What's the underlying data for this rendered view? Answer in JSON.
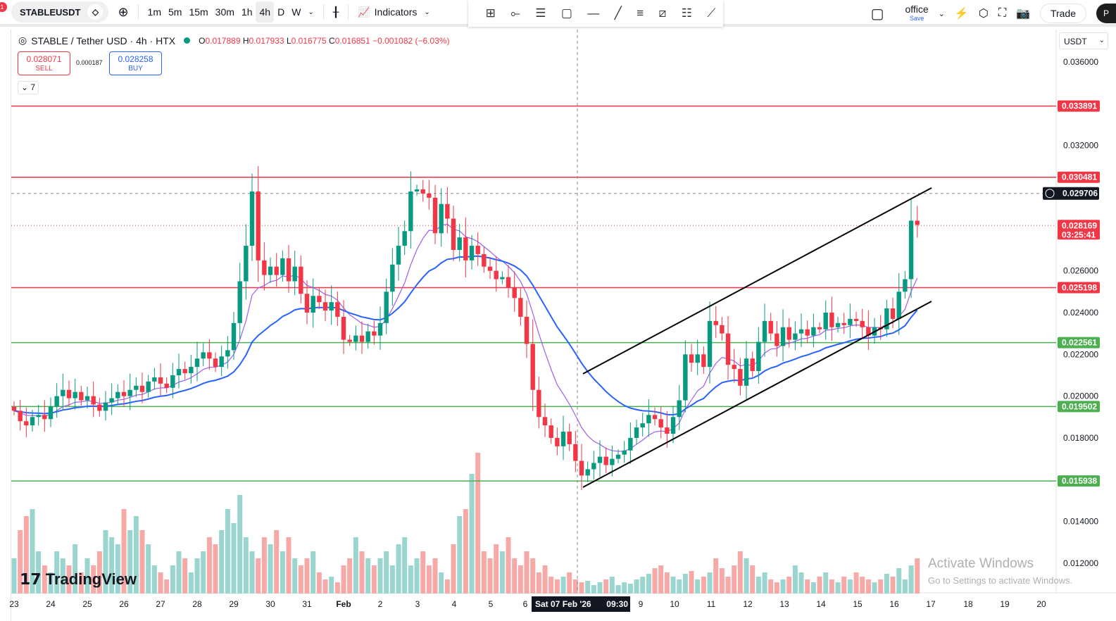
{
  "toolbar": {
    "symbol": "STABLEUSDT",
    "notification_count": "1",
    "intervals": [
      "1m",
      "5m",
      "15m",
      "30m",
      "1h",
      "4h",
      "D",
      "W"
    ],
    "active_interval": "4h",
    "indicators_label": "Indicators",
    "layout_name": "office",
    "save_label": "Save",
    "trade_label": "Trade",
    "profile_initial": "P"
  },
  "legend": {
    "title": "STABLE / Tether USD · 4h · HTX",
    "open_label": "O",
    "open": "0.017889",
    "high_label": "H",
    "high": "0.017933",
    "low_label": "L",
    "low": "0.016775",
    "close_label": "C",
    "close": "0.016851",
    "change": "−0.001082 (−6.03%)",
    "sell_price": "0.028071",
    "sell_label": "SELL",
    "spread": "0.000187",
    "buy_price": "0.028258",
    "buy_label": "BUY",
    "indicators_collapsed": "7"
  },
  "currency": "USDT",
  "branding": "TradingView",
  "watermark": {
    "title": "Activate Windows",
    "subtitle": "Go to Settings to activate Windows."
  },
  "colors": {
    "up": "#089981",
    "down": "#f23645",
    "ma_fast": "#9c5ff0",
    "ma_slow": "#2962ff",
    "support": "#4caf50",
    "resistance": "#f23645"
  },
  "chart_data": {
    "type": "candlestick",
    "interval": "4h",
    "y_ticks": [
      "0.036000",
      "0.032000",
      "0.026000",
      "0.024000",
      "0.022000",
      "0.020000",
      "0.018000",
      "0.014000",
      "0.012000"
    ],
    "ylim": [
      0.0108,
      0.037
    ],
    "x_labels": [
      "23",
      "24",
      "25",
      "26",
      "27",
      "28",
      "29",
      "30",
      "31",
      "Feb",
      "2",
      "3",
      "4",
      "5",
      "6",
      "9",
      "10",
      "11",
      "12",
      "13",
      "14",
      "15",
      "16",
      "17",
      "18",
      "19",
      "20"
    ],
    "crosshair": {
      "time_label": "Sat 07 Feb '26",
      "time": "09:30",
      "price": "0.029706"
    },
    "last_price": {
      "price": "0.028169",
      "countdown": "03:25:41"
    },
    "resistance_levels": [
      "0.033891",
      "0.030481",
      "0.025198"
    ],
    "support_levels": [
      "0.022561",
      "0.019502",
      "0.015938"
    ],
    "channel": {
      "upper": [
        0.02107,
        0.02997
      ],
      "lower": [
        0.01564,
        0.02454
      ]
    },
    "closes": [
      0.0193,
      0.0188,
      0.0186,
      0.019,
      0.0191,
      0.0189,
      0.0195,
      0.02,
      0.0203,
      0.0199,
      0.0202,
      0.0198,
      0.02,
      0.0196,
      0.0193,
      0.0197,
      0.0199,
      0.0202,
      0.02,
      0.0203,
      0.0205,
      0.0202,
      0.0207,
      0.0209,
      0.0206,
      0.0204,
      0.021,
      0.0213,
      0.0211,
      0.0214,
      0.0218,
      0.0221,
      0.0218,
      0.0214,
      0.0219,
      0.0222,
      0.0235,
      0.0255,
      0.0272,
      0.0298,
      0.0265,
      0.0258,
      0.0262,
      0.0258,
      0.0266,
      0.0255,
      0.0262,
      0.0249,
      0.024,
      0.0248,
      0.0245,
      0.0241,
      0.0245,
      0.0238,
      0.0227,
      0.0226,
      0.0229,
      0.0226,
      0.0231,
      0.0229,
      0.0235,
      0.025,
      0.0263,
      0.0272,
      0.0279,
      0.0298,
      0.0299,
      0.0297,
      0.0295,
      0.0278,
      0.0292,
      0.0285,
      0.027,
      0.0276,
      0.0265,
      0.0272,
      0.0268,
      0.0262,
      0.026,
      0.0256,
      0.0257,
      0.0252,
      0.0247,
      0.0238,
      0.0225,
      0.0203,
      0.019,
      0.0186,
      0.018,
      0.0176,
      0.0183,
      0.0177,
      0.0169,
      0.0162,
      0.0165,
      0.0168,
      0.0171,
      0.0167,
      0.017,
      0.0172,
      0.0174,
      0.018,
      0.0185,
      0.0187,
      0.0191,
      0.0189,
      0.0185,
      0.0182,
      0.019,
      0.0198,
      0.022,
      0.0216,
      0.022,
      0.0214,
      0.0236,
      0.0234,
      0.023,
      0.0215,
      0.0213,
      0.0205,
      0.0218,
      0.0212,
      0.0226,
      0.0236,
      0.023,
      0.0224,
      0.0233,
      0.0227,
      0.023,
      0.0232,
      0.0229,
      0.0233,
      0.0232,
      0.024,
      0.0233,
      0.0235,
      0.0234,
      0.0237,
      0.0236,
      0.0233,
      0.0229,
      0.0233,
      0.0232,
      0.0242,
      0.0237,
      0.025,
      0.0256,
      0.0284,
      0.0282
    ],
    "volumes": [
      25,
      45,
      55,
      60,
      30,
      20,
      15,
      30,
      25,
      20,
      35,
      15,
      25,
      20,
      30,
      45,
      40,
      35,
      60,
      45,
      55,
      45,
      35,
      20,
      15,
      10,
      20,
      30,
      25,
      15,
      25,
      30,
      40,
      35,
      45,
      60,
      50,
      70,
      40,
      30,
      25,
      40,
      35,
      45,
      30,
      40,
      25,
      20,
      25,
      30,
      15,
      10,
      12,
      8,
      20,
      25,
      40,
      30,
      25,
      20,
      25,
      30,
      20,
      35,
      40,
      20,
      25,
      30,
      20,
      25,
      15,
      10,
      35,
      55,
      60,
      85,
      100,
      30,
      25,
      35,
      30,
      40,
      25,
      20,
      30,
      25,
      15,
      20,
      12,
      10,
      12,
      15,
      10,
      8,
      9,
      6,
      8,
      10,
      12,
      6,
      8,
      7,
      10,
      12,
      14,
      18,
      20,
      15,
      12,
      10,
      14,
      16,
      10,
      12,
      15,
      25,
      18,
      12,
      20,
      30,
      25,
      20,
      12,
      15,
      10,
      8,
      10,
      12,
      20,
      15,
      10,
      8,
      12,
      15,
      10,
      8,
      12,
      10,
      15,
      12,
      10,
      8,
      10,
      14,
      12,
      18,
      10,
      20,
      25
    ]
  }
}
